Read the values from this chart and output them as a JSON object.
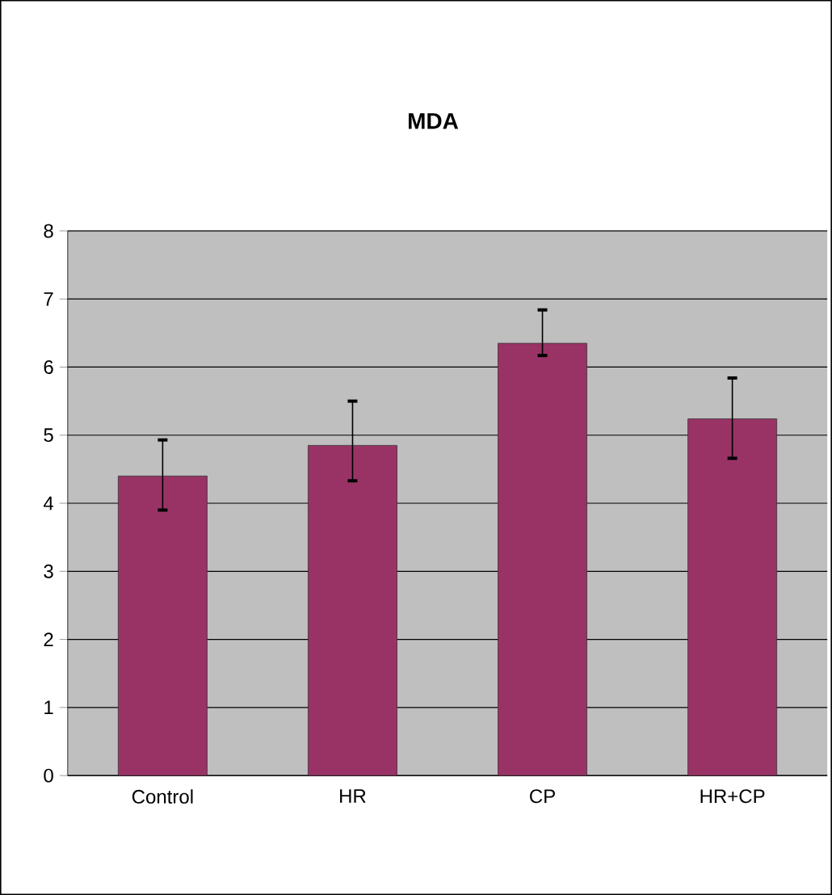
{
  "chart_data": {
    "type": "bar",
    "title": "MDA",
    "categories": [
      "Control",
      "HR",
      "CP",
      "HR+CP"
    ],
    "values": [
      4.4,
      4.85,
      6.35,
      5.24
    ],
    "color": "#993366",
    "errors": [
      [
        3.9,
        4.93
      ],
      [
        4.33,
        5.5
      ],
      [
        6.17,
        6.84
      ],
      [
        4.66,
        5.84
      ]
    ],
    "ylim": [
      0,
      8
    ],
    "yticks": [
      0,
      1,
      2,
      3,
      4,
      5,
      6,
      7,
      8
    ],
    "grid": "y"
  }
}
